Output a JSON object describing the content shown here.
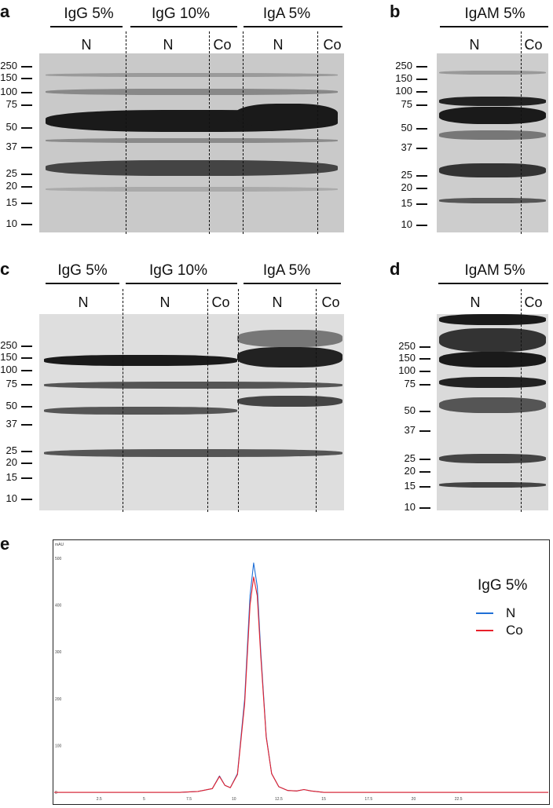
{
  "panels": {
    "a": {
      "label": "a",
      "groups": [
        "IgG 5%",
        "IgG 10%",
        "IgA 5%"
      ],
      "lanes": [
        "N",
        "N",
        "Co",
        "N",
        "Co"
      ],
      "markers": [
        "250",
        "150",
        "100",
        "75",
        "50",
        "37",
        "25",
        "20",
        "15",
        "10"
      ]
    },
    "b": {
      "label": "b",
      "groups": [
        "IgAM 5%"
      ],
      "lanes": [
        "N",
        "Co"
      ],
      "markers": [
        "250",
        "150",
        "100",
        "75",
        "50",
        "37",
        "25",
        "20",
        "15",
        "10"
      ]
    },
    "c": {
      "label": "c",
      "groups": [
        "IgG 5%",
        "IgG 10%",
        "IgA 5%"
      ],
      "lanes": [
        "N",
        "N",
        "Co",
        "N",
        "Co"
      ],
      "markers": [
        "250",
        "150",
        "100",
        "75",
        "50",
        "37",
        "25",
        "20",
        "15",
        "10"
      ]
    },
    "d": {
      "label": "d",
      "groups": [
        "IgAM 5%"
      ],
      "lanes": [
        "N",
        "Co"
      ],
      "markers": [
        "250",
        "150",
        "100",
        "75",
        "50",
        "37",
        "25",
        "20",
        "15",
        "10"
      ]
    },
    "e": {
      "label": "e",
      "legend_title": "IgG 5%",
      "legend": [
        {
          "name": "N",
          "color": "#1f6fd6"
        },
        {
          "name": "Co",
          "color": "#e8202a"
        }
      ]
    }
  },
  "chart_data": {
    "type": "line",
    "title": "",
    "ylabel": "mAU",
    "xlabel": "",
    "xlim": [
      0,
      27.5
    ],
    "ylim": [
      -20,
      520
    ],
    "x_ticks": [
      "2.5",
      "5",
      "7.5",
      "10",
      "12.5",
      "15",
      "17.5",
      "20",
      "22.5"
    ],
    "y_ticks": [
      "0",
      "100",
      "200",
      "300",
      "400",
      "500"
    ],
    "series": [
      {
        "name": "N",
        "color": "#1f6fd6",
        "x": [
          0,
          7,
          8,
          8.8,
          9.2,
          9.5,
          9.8,
          10.2,
          10.6,
          10.9,
          11.1,
          11.3,
          11.5,
          11.8,
          12.1,
          12.5,
          13,
          13.5,
          13.9,
          14.3,
          15,
          27.5
        ],
        "y": [
          0,
          0,
          2,
          8,
          35,
          15,
          10,
          40,
          200,
          420,
          490,
          440,
          300,
          120,
          40,
          12,
          4,
          3,
          6,
          3,
          0,
          0
        ]
      },
      {
        "name": "Co",
        "color": "#e8202a",
        "x": [
          0,
          7,
          8,
          8.8,
          9.2,
          9.5,
          9.8,
          10.2,
          10.6,
          10.9,
          11.1,
          11.3,
          11.5,
          11.8,
          12.1,
          12.5,
          13,
          13.5,
          13.9,
          14.3,
          15,
          27.5
        ],
        "y": [
          0,
          0,
          2,
          8,
          34,
          15,
          10,
          38,
          190,
          400,
          460,
          420,
          290,
          118,
          40,
          12,
          4,
          3,
          6,
          3,
          0,
          0
        ]
      }
    ]
  }
}
